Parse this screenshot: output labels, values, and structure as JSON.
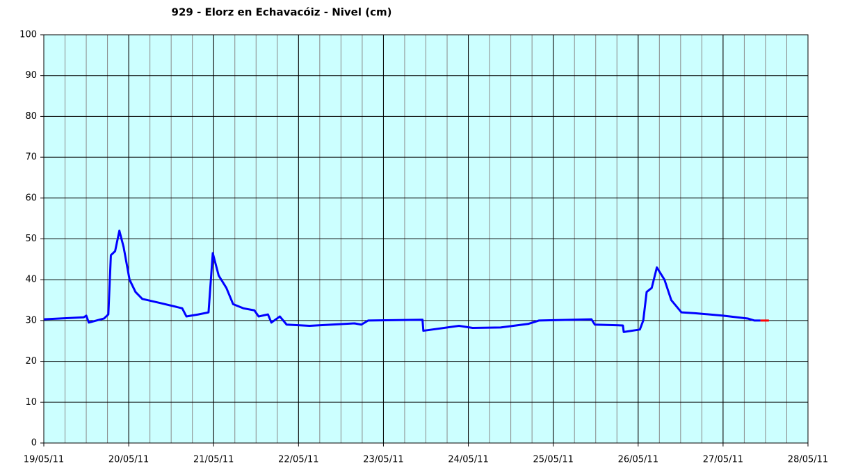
{
  "chart_data": {
    "type": "line",
    "title": "929 - Elorz en Echavacóiz - Nivel (cm)",
    "xlim": [
      19,
      28
    ],
    "xticks": [
      {
        "value": 19,
        "label": "19/05/11"
      },
      {
        "value": 20,
        "label": "20/05/11"
      },
      {
        "value": 21,
        "label": "21/05/11"
      },
      {
        "value": 22,
        "label": "22/05/11"
      },
      {
        "value": 23,
        "label": "23/05/11"
      },
      {
        "value": 24,
        "label": "24/05/11"
      },
      {
        "value": 25,
        "label": "25/05/11"
      },
      {
        "value": 26,
        "label": "26/05/11"
      },
      {
        "value": 27,
        "label": "27/05/11"
      },
      {
        "value": 28,
        "label": "28/05/11"
      }
    ],
    "xminor": 0.25,
    "ylim": [
      0,
      100
    ],
    "yticks": [
      0,
      10,
      20,
      30,
      40,
      50,
      60,
      70,
      80,
      90,
      100
    ],
    "grid": true,
    "background": "#ccffff",
    "series": [
      {
        "color": "#0000ff",
        "x": [
          19.0,
          19.47,
          19.5,
          19.53,
          19.71,
          19.76,
          19.79,
          19.84,
          19.89,
          19.94,
          20.01,
          20.08,
          20.16,
          20.37,
          20.63,
          20.68,
          20.82,
          20.94,
          20.99,
          21.06,
          21.15,
          21.23,
          21.35,
          21.48,
          21.53,
          21.64,
          21.68,
          21.78,
          21.86,
          22.13,
          22.66,
          22.74,
          22.82,
          23.46,
          23.47,
          23.89,
          24.05,
          24.38,
          24.71,
          24.83,
          25.45,
          25.49,
          25.82,
          25.83,
          26.02,
          26.06,
          26.1,
          26.16,
          26.22,
          26.31,
          26.39,
          26.51,
          26.67,
          27.0,
          27.29,
          27.37,
          27.44
        ],
        "values": [
          30.3,
          30.8,
          31.2,
          29.5,
          30.5,
          31.5,
          46,
          47,
          52,
          48,
          40,
          37,
          35.3,
          34.3,
          33,
          31,
          31.5,
          32,
          46.5,
          41,
          38,
          34,
          33,
          32.5,
          31,
          31.5,
          29.5,
          31,
          29,
          28.7,
          29.3,
          29,
          30,
          30.2,
          27.5,
          28.7,
          28.2,
          28.3,
          29.2,
          30,
          30.3,
          29,
          28.8,
          27.2,
          27.8,
          30,
          37,
          38,
          43,
          40,
          35,
          32,
          31.8,
          31.2,
          30.5,
          30,
          30
        ]
      },
      {
        "color": "#ff0000",
        "x": [
          27.44,
          27.54
        ],
        "values": [
          30,
          30
        ]
      }
    ]
  }
}
